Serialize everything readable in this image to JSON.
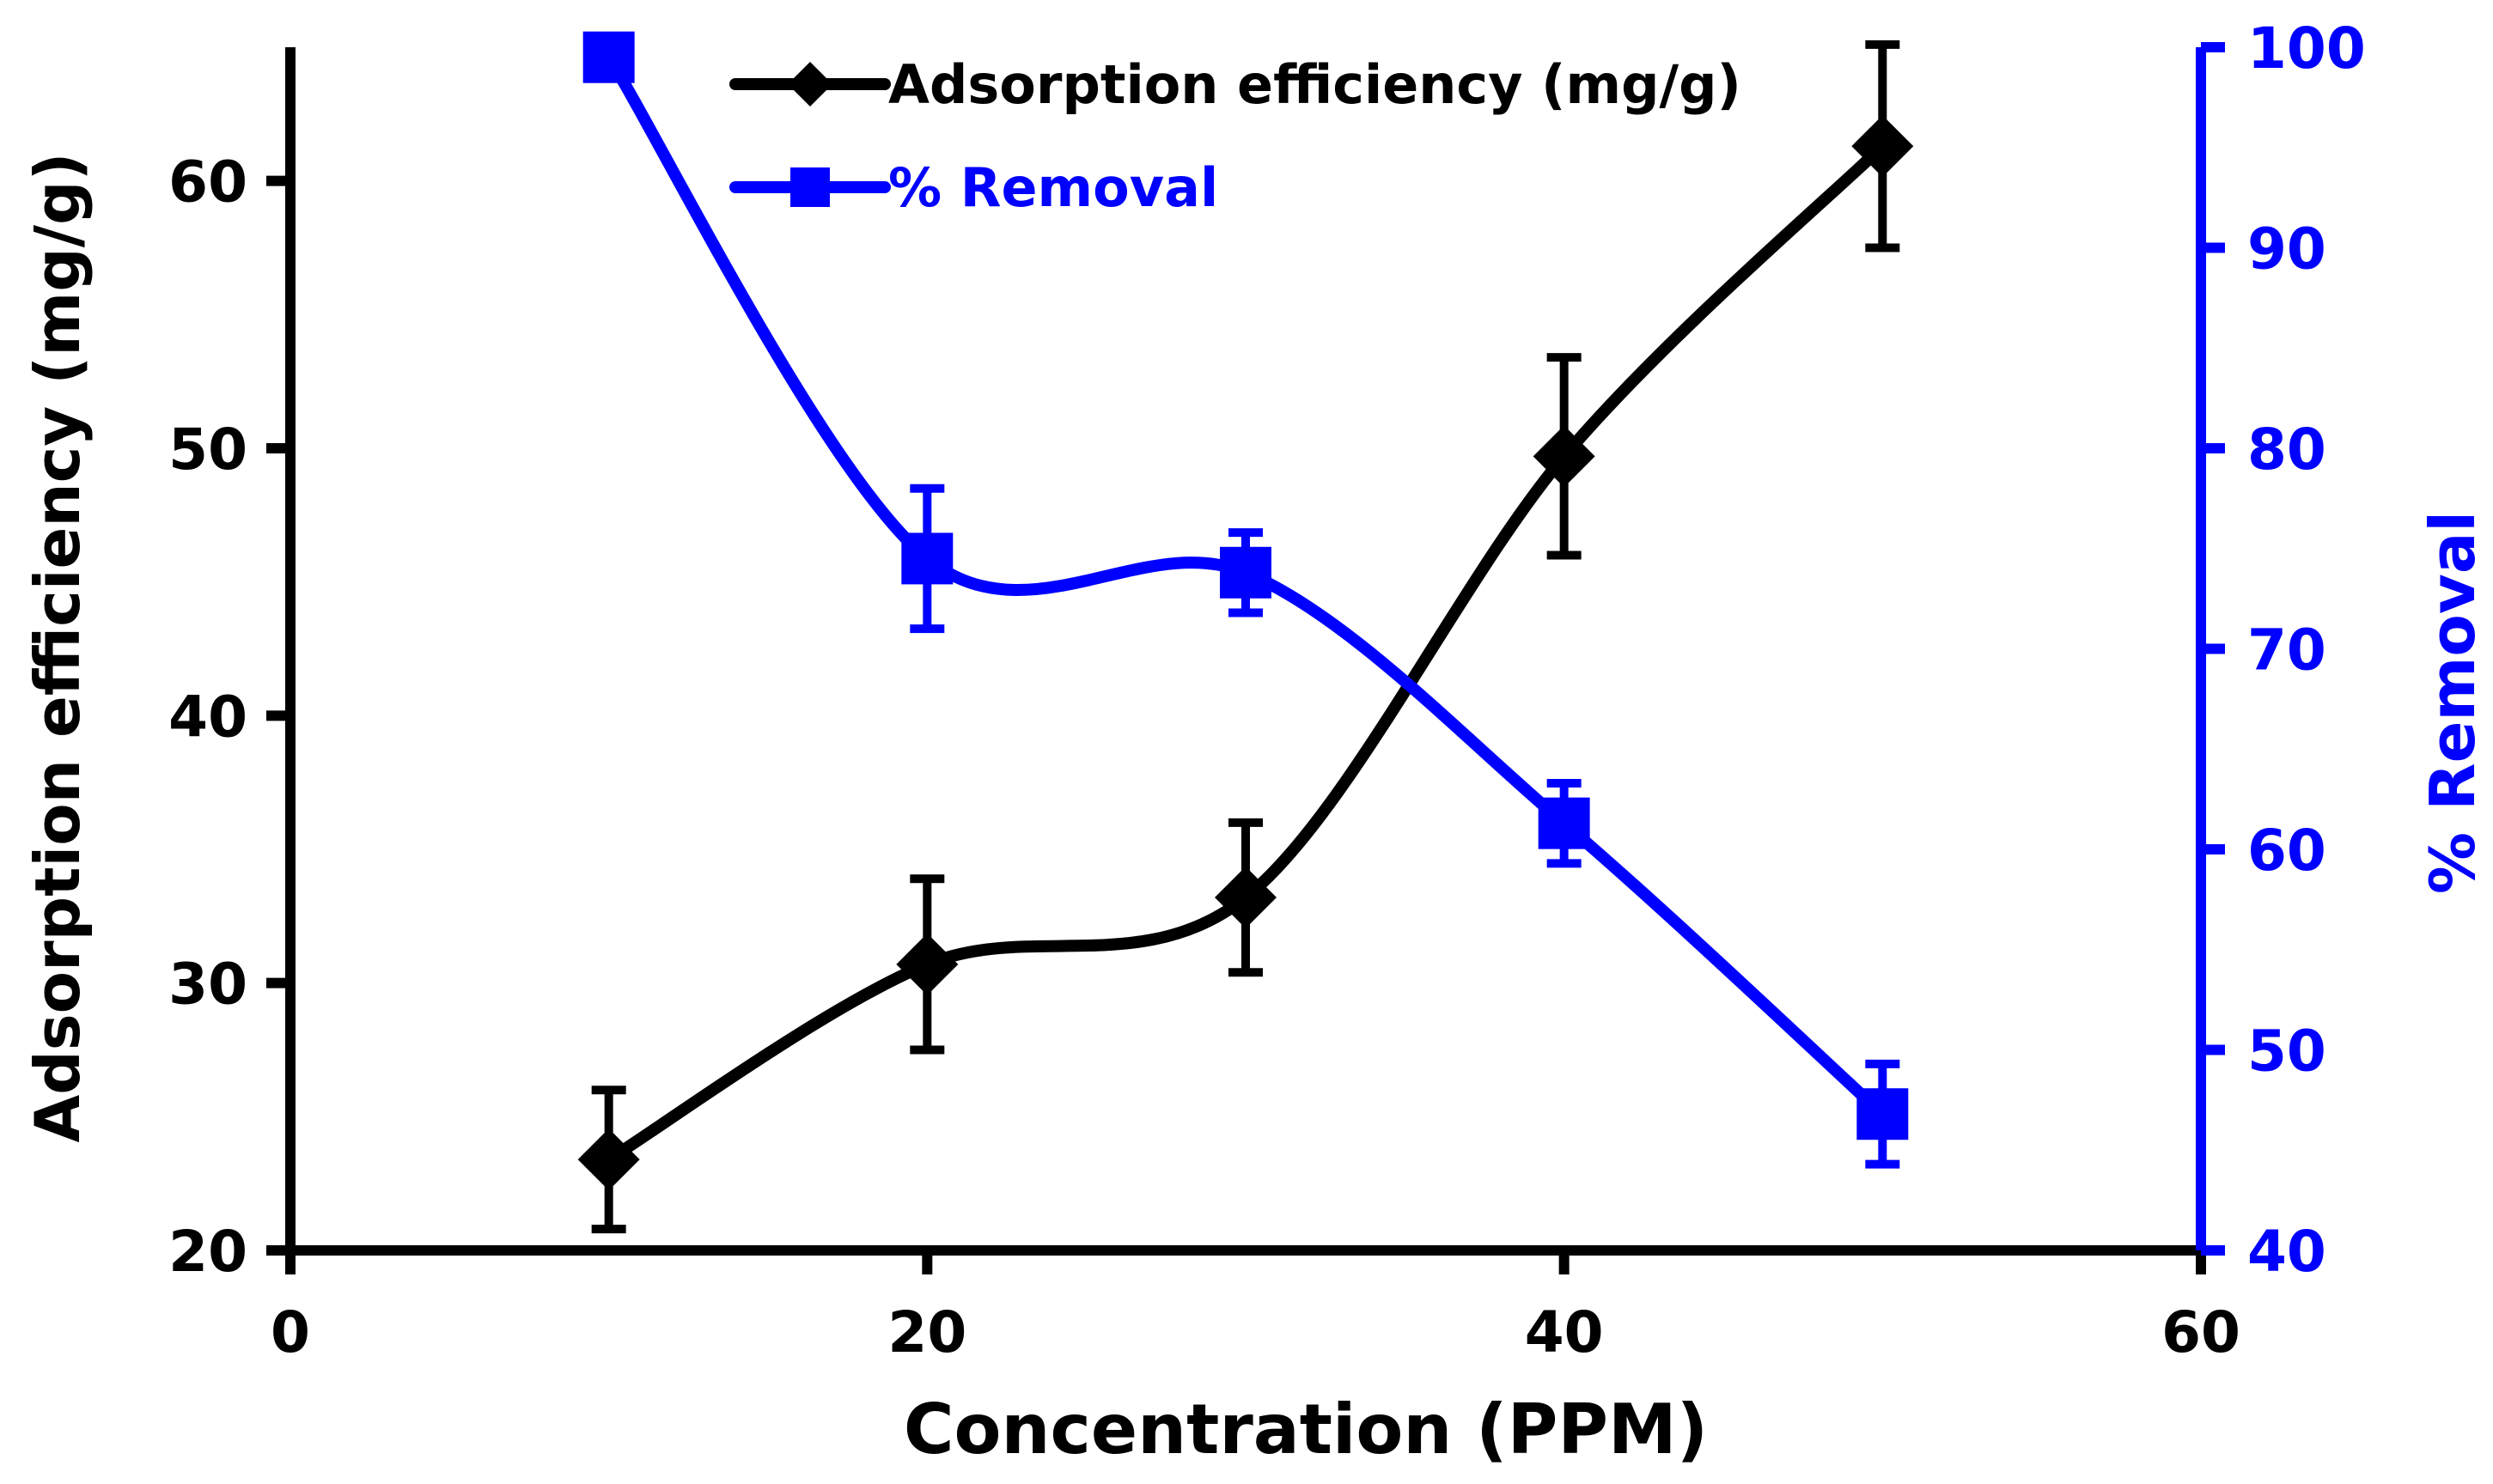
{
  "colors": {
    "series1": "#000000",
    "series2": "#0000ff",
    "background": "#ffffff"
  },
  "chart_data": {
    "type": "line",
    "title": "",
    "xlabel": "Concentration (PPM)",
    "ylabel": "Adsorption efficiency (mg/g)",
    "y2label": "% Removal",
    "xlim": [
      0,
      60
    ],
    "ylim": [
      20,
      65
    ],
    "y2lim": [
      40,
      100
    ],
    "xticks": [
      0,
      20,
      40,
      60
    ],
    "yticks": [
      20,
      30,
      40,
      50,
      60
    ],
    "y2ticks": [
      40,
      50,
      60,
      70,
      80,
      90,
      100
    ],
    "grid": false,
    "legend_position": "top-center",
    "x": [
      10,
      20,
      30,
      40,
      50
    ],
    "series": [
      {
        "name": "Adsorption efficiency (mg/g)",
        "axis": "left",
        "marker": "diamond",
        "values": [
          23.4,
          30.7,
          33.2,
          49.7,
          61.3
        ],
        "errors": [
          2.6,
          3.2,
          2.8,
          3.7,
          3.8
        ]
      },
      {
        "name": "% Removal",
        "axis": "right",
        "marker": "square",
        "values": [
          99.5,
          74.5,
          73.8,
          61.3,
          46.8
        ],
        "errors": [
          0,
          3.5,
          2.0,
          2.0,
          2.5
        ]
      }
    ]
  }
}
